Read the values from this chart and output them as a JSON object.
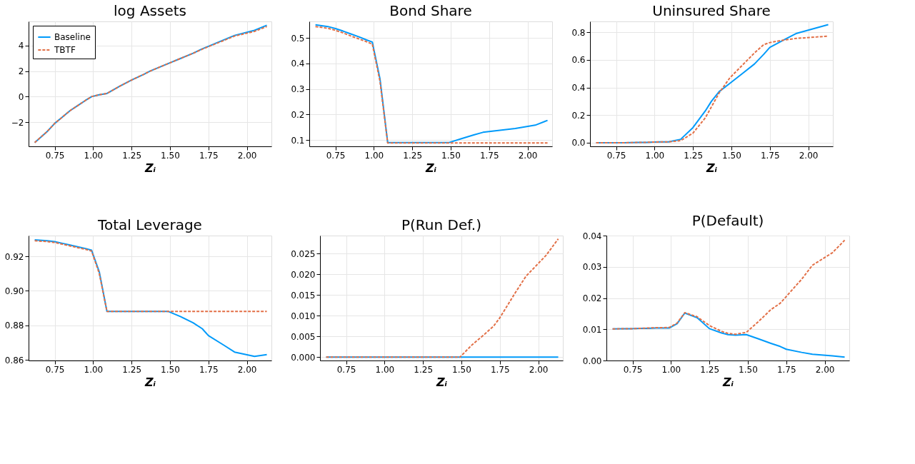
{
  "chart_data": [
    {
      "type": "line",
      "title": "log Assets",
      "xlabel": "Zᵢ",
      "grid": true,
      "legend": "top left",
      "x": [
        0.62,
        0.7,
        0.75,
        0.8,
        0.85,
        0.9,
        0.95,
        0.99,
        1.04,
        1.09,
        1.17,
        1.25,
        1.33,
        1.37,
        1.42,
        1.49,
        1.57,
        1.65,
        1.71,
        1.75,
        1.85,
        1.92,
        2.05,
        2.13
      ],
      "xlim": [
        0.58,
        2.16
      ],
      "xticks": [
        {
          "value": 0.75,
          "label": "0.75"
        },
        {
          "value": 1.0,
          "label": "1.00"
        },
        {
          "value": 1.25,
          "label": "1.25"
        },
        {
          "value": 1.5,
          "label": "1.50"
        },
        {
          "value": 1.75,
          "label": "1.75"
        },
        {
          "value": 2.0,
          "label": "2.00"
        }
      ],
      "ylim": [
        -3.9,
        5.9
      ],
      "yticks": [
        {
          "value": -2,
          "label": "−2"
        },
        0,
        2,
        4
      ],
      "series": [
        {
          "name": "Baseline",
          "color": "#009afa",
          "line_style": "solid",
          "values": [
            -3.6,
            -2.75,
            -2.1,
            -1.6,
            -1.1,
            -0.7,
            -0.3,
            0,
            0.15,
            0.25,
            0.8,
            1.3,
            1.75,
            2.0,
            2.25,
            2.6,
            3.0,
            3.4,
            3.75,
            3.95,
            4.45,
            4.8,
            5.2,
            5.6
          ]
        },
        {
          "name": "TBTF",
          "color": "#e26f46",
          "line_style": "dashed",
          "values": [
            -3.6,
            -2.75,
            -2.1,
            -1.6,
            -1.1,
            -0.7,
            -0.3,
            0,
            0.15,
            0.25,
            0.8,
            1.3,
            1.75,
            2.0,
            2.25,
            2.6,
            3.0,
            3.4,
            3.72,
            3.92,
            4.4,
            4.75,
            5.12,
            5.5
          ]
        }
      ]
    },
    {
      "type": "line",
      "title": "Bond Share",
      "xlabel": "Zᵢ",
      "grid": true,
      "x": [
        0.62,
        0.7,
        0.75,
        0.8,
        0.85,
        0.9,
        0.95,
        0.99,
        1.04,
        1.09,
        1.17,
        1.25,
        1.33,
        1.37,
        1.42,
        1.49,
        1.57,
        1.65,
        1.71,
        1.75,
        1.85,
        1.92,
        2.05,
        2.13
      ],
      "xlim": [
        0.58,
        2.16
      ],
      "xticks": [
        {
          "value": 0.75,
          "label": "0.75"
        },
        {
          "value": 1.0,
          "label": "1.00"
        },
        {
          "value": 1.25,
          "label": "1.25"
        },
        {
          "value": 1.5,
          "label": "1.50"
        },
        {
          "value": 1.75,
          "label": "1.75"
        },
        {
          "value": 2.0,
          "label": "2.00"
        }
      ],
      "ylim": [
        0.075,
        0.565
      ],
      "yticks": [
        0.1,
        0.2,
        0.3,
        0.4,
        0.5
      ],
      "series": [
        {
          "color": "#009afa",
          "line_style": "solid",
          "values": [
            0.552,
            0.545,
            0.537,
            0.527,
            0.516,
            0.505,
            0.493,
            0.484,
            0.34,
            0.09,
            0.09,
            0.09,
            0.09,
            0.09,
            0.09,
            0.09,
            0.105,
            0.12,
            0.13,
            0.133,
            0.14,
            0.145,
            0.158,
            0.177
          ]
        },
        {
          "color": "#e26f46",
          "line_style": "dashed",
          "values": [
            0.545,
            0.538,
            0.53,
            0.52,
            0.508,
            0.497,
            0.486,
            0.476,
            0.33,
            0.088,
            0.088,
            0.088,
            0.088,
            0.088,
            0.088,
            0.088,
            0.088,
            0.088,
            0.088,
            0.088,
            0.088,
            0.088,
            0.088,
            0.088
          ]
        }
      ]
    },
    {
      "type": "line",
      "title": "Uninsured Share",
      "xlabel": "Zᵢ",
      "grid": true,
      "x": [
        0.62,
        0.7,
        0.75,
        0.8,
        0.85,
        0.9,
        0.95,
        0.99,
        1.04,
        1.09,
        1.17,
        1.25,
        1.33,
        1.37,
        1.42,
        1.49,
        1.57,
        1.65,
        1.71,
        1.75,
        1.85,
        1.92,
        2.05,
        2.13
      ],
      "xlim": [
        0.58,
        2.16
      ],
      "xticks": [
        {
          "value": 0.75,
          "label": "0.75"
        },
        {
          "value": 1.0,
          "label": "1.00"
        },
        {
          "value": 1.25,
          "label": "1.25"
        },
        {
          "value": 1.5,
          "label": "1.50"
        },
        {
          "value": 1.75,
          "label": "1.75"
        },
        {
          "value": 2.0,
          "label": "2.00"
        }
      ],
      "ylim": [
        -0.026,
        0.878
      ],
      "yticks": [
        {
          "value": 0,
          "label": "0.0"
        },
        0.2,
        0.4,
        0.6,
        0.8
      ],
      "series": [
        {
          "color": "#009afa",
          "line_style": "solid",
          "values": [
            0.0,
            0.0,
            0.0,
            0.0,
            0.001,
            0.002,
            0.003,
            0.005,
            0.006,
            0.006,
            0.025,
            0.11,
            0.23,
            0.3,
            0.37,
            0.43,
            0.5,
            0.57,
            0.64,
            0.69,
            0.75,
            0.79,
            0.83,
            0.855
          ]
        },
        {
          "color": "#e26f46",
          "line_style": "dashed",
          "values": [
            0.0,
            0.0,
            0.0,
            0.0,
            0.001,
            0.002,
            0.003,
            0.005,
            0.006,
            0.006,
            0.015,
            0.07,
            0.18,
            0.26,
            0.36,
            0.47,
            0.56,
            0.65,
            0.71,
            0.725,
            0.745,
            0.755,
            0.765,
            0.772
          ]
        }
      ]
    },
    {
      "type": "line",
      "title": "Total Leverage",
      "xlabel": "Zᵢ",
      "grid": true,
      "x": [
        0.62,
        0.7,
        0.75,
        0.8,
        0.85,
        0.9,
        0.95,
        0.99,
        1.04,
        1.09,
        1.17,
        1.25,
        1.33,
        1.37,
        1.42,
        1.49,
        1.57,
        1.65,
        1.71,
        1.75,
        1.85,
        1.92,
        2.05,
        2.13
      ],
      "xlim": [
        0.58,
        2.16
      ],
      "xticks": [
        {
          "value": 0.75,
          "label": "0.75"
        },
        {
          "value": 1.0,
          "label": "1.00"
        },
        {
          "value": 1.25,
          "label": "1.25"
        },
        {
          "value": 1.5,
          "label": "1.50"
        },
        {
          "value": 1.75,
          "label": "1.75"
        },
        {
          "value": 2.0,
          "label": "2.00"
        }
      ],
      "ylim": [
        0.8596,
        0.932
      ],
      "yticks": [
        0.86,
        0.88,
        {
          "value": 0.9,
          "label": "0.90"
        },
        0.92
      ],
      "series": [
        {
          "color": "#009afa",
          "line_style": "solid",
          "values": [
            0.9295,
            0.929,
            0.9285,
            0.9275,
            0.9265,
            0.9255,
            0.9245,
            0.9235,
            0.911,
            0.888,
            0.888,
            0.888,
            0.888,
            0.888,
            0.888,
            0.888,
            0.885,
            0.8815,
            0.878,
            0.874,
            0.8685,
            0.8645,
            0.862,
            0.863
          ]
        },
        {
          "color": "#e26f46",
          "line_style": "dashed",
          "values": [
            0.929,
            0.9285,
            0.928,
            0.927,
            0.926,
            0.925,
            0.924,
            0.923,
            0.91,
            0.888,
            0.888,
            0.888,
            0.888,
            0.888,
            0.888,
            0.888,
            0.888,
            0.888,
            0.888,
            0.888,
            0.888,
            0.888,
            0.888,
            0.888
          ]
        }
      ]
    },
    {
      "type": "line",
      "title": "P(Run Def.)",
      "xlabel": "Zᵢ",
      "grid": true,
      "x": [
        0.62,
        0.7,
        0.75,
        0.8,
        0.85,
        0.9,
        0.95,
        0.99,
        1.04,
        1.09,
        1.17,
        1.25,
        1.33,
        1.37,
        1.42,
        1.49,
        1.57,
        1.65,
        1.71,
        1.75,
        1.85,
        1.92,
        2.05,
        2.13
      ],
      "xlim": [
        0.58,
        2.16
      ],
      "xticks": [
        {
          "value": 0.75,
          "label": "0.75"
        },
        {
          "value": 1.0,
          "label": "1.00"
        },
        {
          "value": 1.25,
          "label": "1.25"
        },
        {
          "value": 1.5,
          "label": "1.50"
        },
        {
          "value": 1.75,
          "label": "1.75"
        },
        {
          "value": 2.0,
          "label": "2.00"
        }
      ],
      "ylim": [
        -0.0008,
        0.0293
      ],
      "yticks": [
        {
          "value": 0,
          "label": "0.000"
        },
        0.005,
        {
          "value": 0.01,
          "label": "0.010"
        },
        0.015,
        {
          "value": 0.02,
          "label": "0.020"
        },
        0.025
      ],
      "series": [
        {
          "color": "#009afa",
          "line_style": "solid",
          "values": [
            0,
            0,
            0,
            0,
            0,
            0,
            0,
            0,
            0,
            0,
            0,
            0,
            0,
            0,
            0,
            0,
            0,
            0,
            0,
            0,
            0,
            0,
            0,
            0
          ]
        },
        {
          "color": "#e26f46",
          "line_style": "dashed",
          "values": [
            0,
            0,
            0,
            0,
            0,
            0,
            0,
            0,
            0,
            0,
            0,
            0,
            0,
            0,
            0,
            0,
            0.003,
            0.0055,
            0.0075,
            0.0095,
            0.0155,
            0.0195,
            0.0245,
            0.0285
          ]
        }
      ]
    },
    {
      "type": "line",
      "title": "P(Default)",
      "xlabel": "Zᵢ",
      "grid": true,
      "x": [
        0.62,
        0.7,
        0.75,
        0.8,
        0.85,
        0.9,
        0.95,
        0.99,
        1.04,
        1.09,
        1.17,
        1.25,
        1.33,
        1.37,
        1.42,
        1.49,
        1.57,
        1.65,
        1.71,
        1.75,
        1.85,
        1.92,
        2.05,
        2.13
      ],
      "xlim": [
        0.58,
        2.16
      ],
      "xticks": [
        {
          "value": 0.75,
          "label": "0.75"
        },
        {
          "value": 1.0,
          "label": "1.00"
        },
        {
          "value": 1.25,
          "label": "1.25"
        },
        {
          "value": 1.5,
          "label": "1.50"
        },
        {
          "value": 1.75,
          "label": "1.75"
        },
        {
          "value": 2.0,
          "label": "2.00"
        }
      ],
      "ylim": [
        0,
        0.04
      ],
      "yticks": [
        {
          "value": 0,
          "label": "0.00"
        },
        0.01,
        0.02,
        0.03,
        0.04
      ],
      "series": [
        {
          "color": "#009afa",
          "line_style": "solid",
          "values": [
            0.0101,
            0.0102,
            0.0102,
            0.0103,
            0.0103,
            0.0104,
            0.0104,
            0.0104,
            0.0118,
            0.0152,
            0.0137,
            0.0102,
            0.0088,
            0.0083,
            0.0081,
            0.0083,
            0.0069,
            0.0055,
            0.0045,
            0.0036,
            0.0026,
            0.002,
            0.0015,
            0.0011
          ]
        },
        {
          "color": "#e26f46",
          "line_style": "dashed",
          "values": [
            0.0101,
            0.0102,
            0.0102,
            0.0103,
            0.0104,
            0.0105,
            0.0105,
            0.0106,
            0.012,
            0.0153,
            0.014,
            0.0112,
            0.0093,
            0.0087,
            0.0084,
            0.009,
            0.0125,
            0.0163,
            0.0183,
            0.0205,
            0.026,
            0.0305,
            0.0345,
            0.0385
          ]
        }
      ]
    }
  ]
}
